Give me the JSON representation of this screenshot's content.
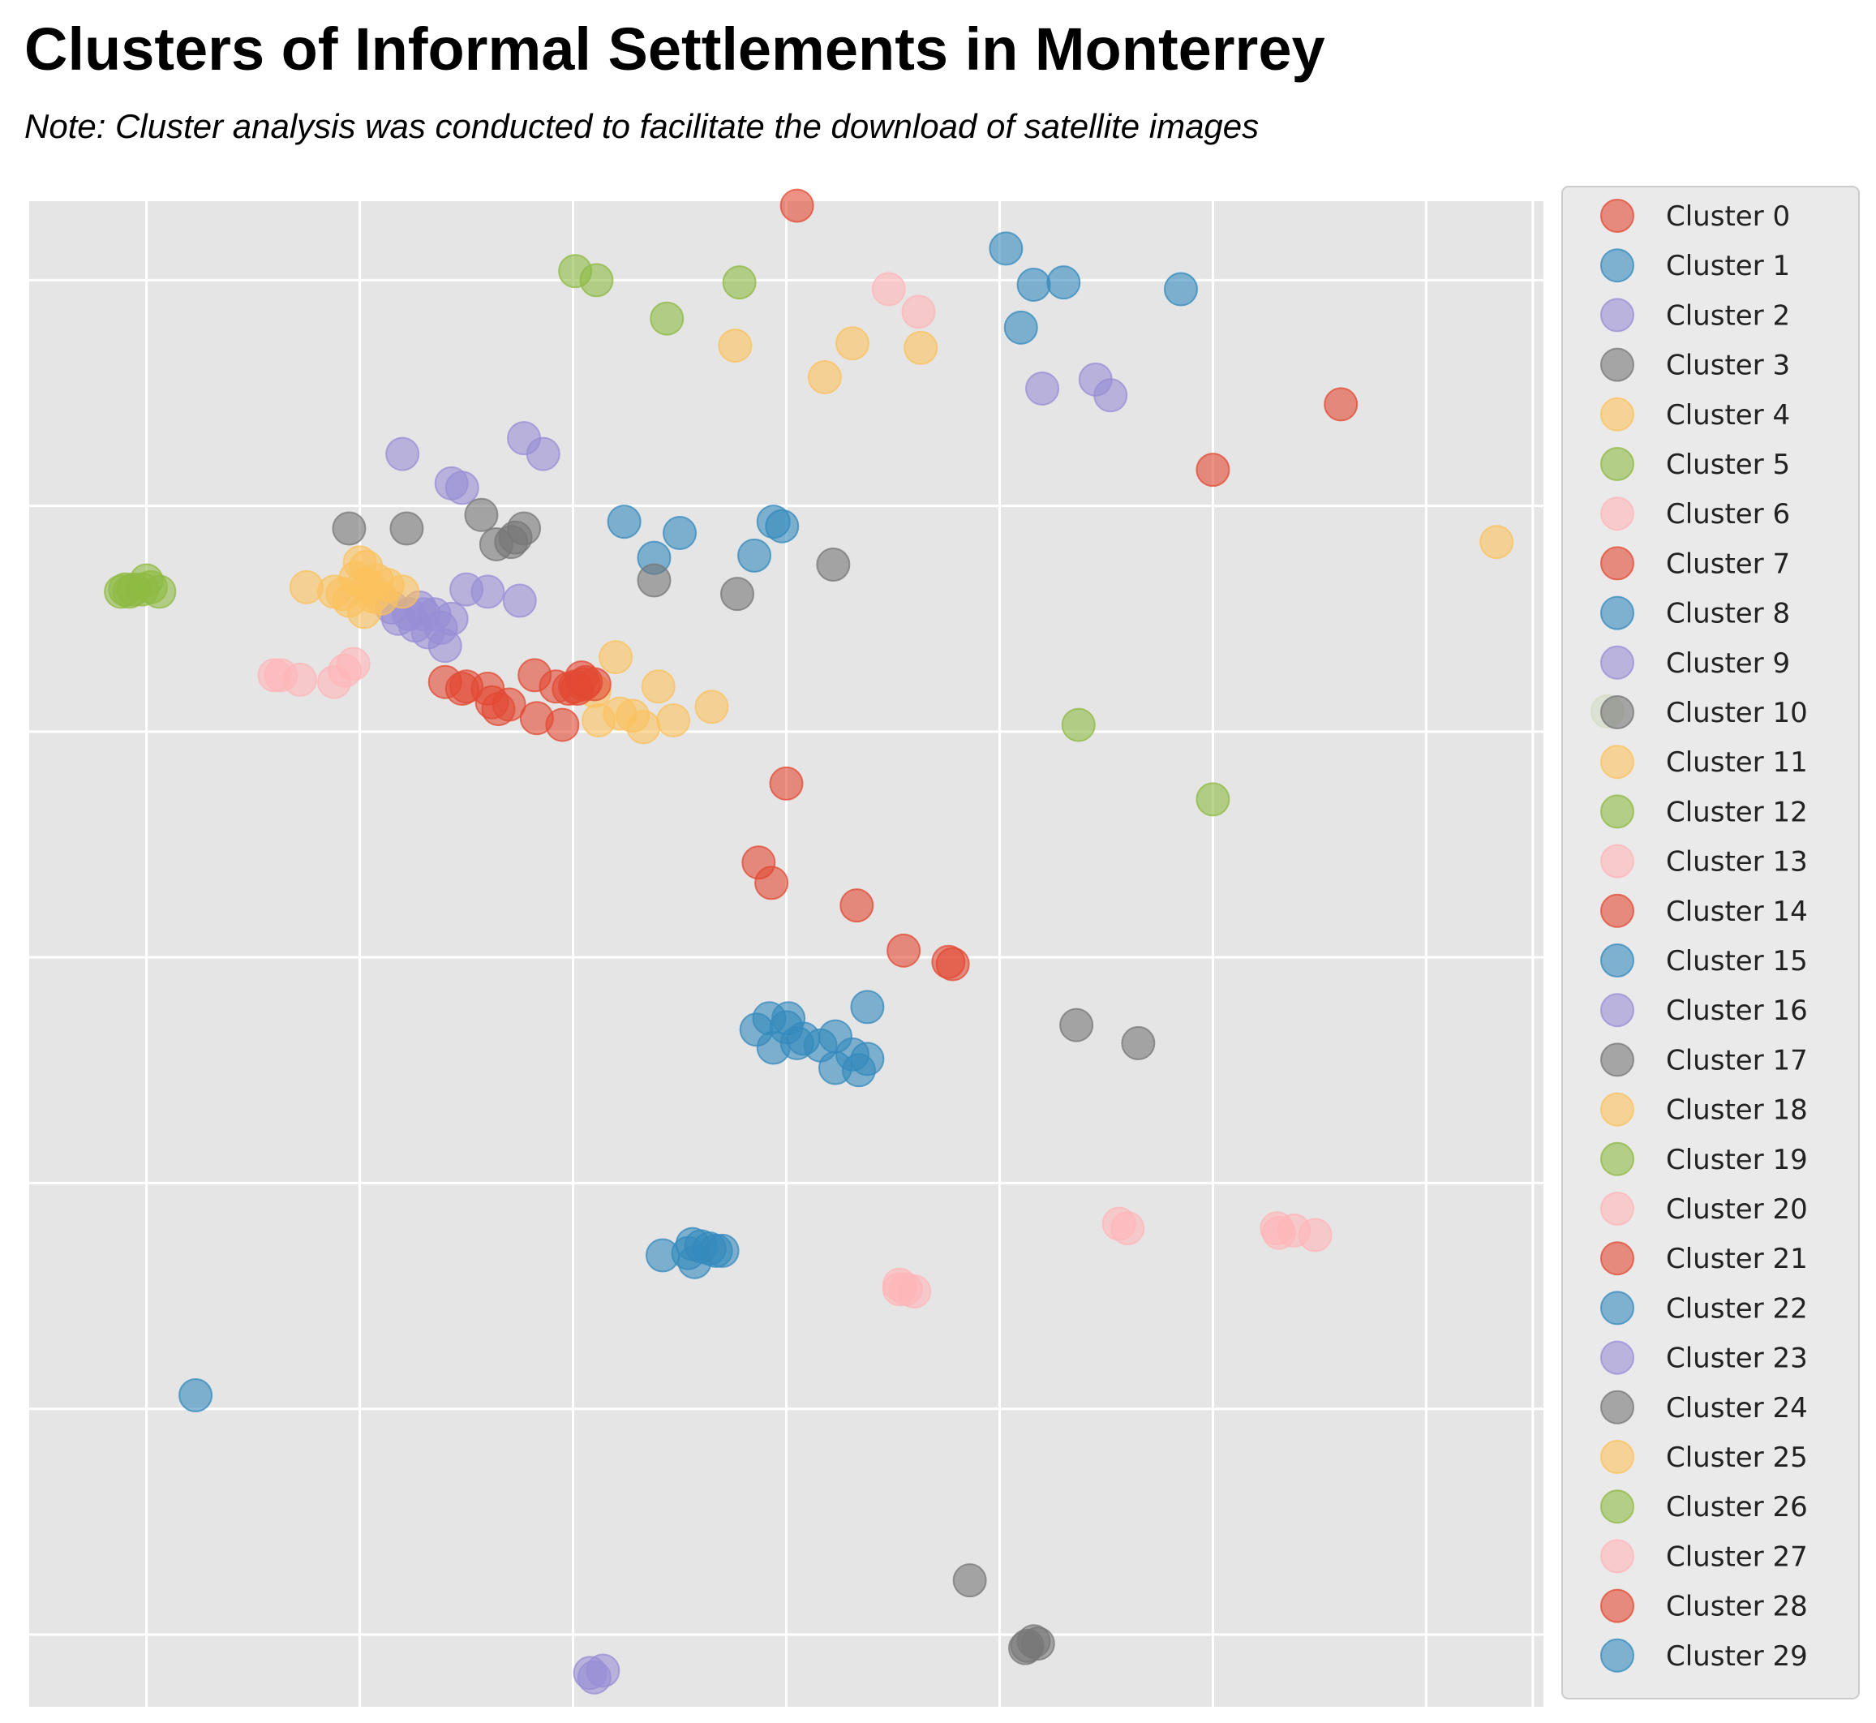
{
  "chart_data": {
    "type": "scatter",
    "title": "Clusters of Informal Settlements in Monterrey",
    "subtitle": "Note: Cluster analysis was conducted to facilitate the download of satellite images",
    "xlabel": "",
    "ylabel": "",
    "xlim": [
      -0.05,
      7.05
    ],
    "ylim": [
      0.68,
      7.35
    ],
    "grid": true,
    "legend_position": "right",
    "xticks": [
      0.5,
      1.5,
      2.5,
      3.5,
      4.5,
      5.5,
      6.5,
      7.0
    ],
    "yticks": [
      1.0,
      2.0,
      3.0,
      4.0,
      5.0,
      6.0,
      7.0
    ],
    "series": [
      {
        "name": "Cluster 0",
        "color": "#E24A33",
        "points": [
          [
            3.55,
            7.33
          ],
          [
            6.1,
            6.45
          ],
          [
            5.5,
            6.16
          ]
        ]
      },
      {
        "name": "Cluster 1",
        "color": "#348ABD",
        "points": [
          [
            4.53,
            7.14
          ],
          [
            4.66,
            6.98
          ],
          [
            4.8,
            6.99
          ],
          [
            5.35,
            6.96
          ],
          [
            4.6,
            6.79
          ]
        ]
      },
      {
        "name": "Cluster 2",
        "color": "#988ED5",
        "points": [
          [
            4.7,
            6.52
          ],
          [
            4.95,
            6.56
          ],
          [
            5.02,
            6.49
          ]
        ]
      },
      {
        "name": "Cluster 3",
        "color": "#777777",
        "points": [
          [
            3.72,
            5.74
          ],
          [
            4.86,
            3.7
          ],
          [
            5.15,
            3.62
          ]
        ]
      },
      {
        "name": "Cluster 4",
        "color": "#FBC15E",
        "points": [
          [
            3.26,
            6.71
          ],
          [
            3.68,
            6.57
          ],
          [
            3.81,
            6.72
          ],
          [
            4.13,
            6.7
          ],
          [
            6.83,
            5.84
          ]
        ]
      },
      {
        "name": "Cluster 5",
        "color": "#8EBA42",
        "points": [
          [
            2.51,
            7.04
          ],
          [
            2.61,
            7.0
          ],
          [
            2.94,
            6.83
          ],
          [
            3.28,
            6.99
          ],
          [
            4.87,
            5.03
          ],
          [
            5.5,
            4.7
          ],
          [
            7.35,
            5.09
          ]
        ]
      },
      {
        "name": "Cluster 6",
        "color": "#FFB5B8",
        "points": [
          [
            3.98,
            6.96
          ],
          [
            4.12,
            6.86
          ]
        ]
      },
      {
        "name": "Cluster 7",
        "color": "#E24A33",
        "points": [
          [
            3.5,
            4.77
          ],
          [
            3.37,
            4.42
          ],
          [
            3.43,
            4.33
          ],
          [
            3.83,
            4.23
          ],
          [
            4.05,
            4.03
          ],
          [
            4.26,
            3.98
          ],
          [
            4.28,
            3.97
          ]
        ]
      },
      {
        "name": "Cluster 8",
        "color": "#348ABD",
        "points": [
          [
            3.36,
            3.68
          ],
          [
            3.44,
            3.6
          ],
          [
            3.51,
            3.73
          ],
          [
            3.58,
            3.64
          ],
          [
            3.66,
            3.61
          ],
          [
            3.73,
            3.65
          ],
          [
            3.81,
            3.57
          ],
          [
            3.88,
            3.78
          ],
          [
            3.5,
            3.69
          ],
          [
            3.73,
            3.51
          ],
          [
            3.84,
            3.5
          ],
          [
            3.88,
            3.55
          ],
          [
            3.42,
            3.73
          ],
          [
            3.55,
            3.62
          ]
        ]
      },
      {
        "name": "Cluster 9",
        "color": "#988ED5",
        "points": [
          [
            1.7,
            6.23
          ],
          [
            2.27,
            6.3
          ],
          [
            2.36,
            6.23
          ],
          [
            1.93,
            6.1
          ],
          [
            1.98,
            6.08
          ],
          [
            2.0,
            5.63
          ],
          [
            2.1,
            5.62
          ],
          [
            2.25,
            5.58
          ]
        ]
      },
      {
        "name": "Cluster 10",
        "color": "#777777",
        "points": [
          [
            1.45,
            5.9
          ],
          [
            1.72,
            5.9
          ],
          [
            2.07,
            5.96
          ],
          [
            2.27,
            5.9
          ],
          [
            2.14,
            5.83
          ],
          [
            2.21,
            5.84
          ],
          [
            2.23,
            5.86
          ]
        ]
      },
      {
        "name": "Cluster 11",
        "color": "#FBC15E",
        "points": [
          [
            2.7,
            5.33
          ],
          [
            2.6,
            5.18
          ],
          [
            2.9,
            5.2
          ],
          [
            2.72,
            5.08
          ],
          [
            2.83,
            5.02
          ],
          [
            2.97,
            5.05
          ],
          [
            3.15,
            5.11
          ],
          [
            2.62,
            5.05
          ],
          [
            2.78,
            5.07
          ]
        ]
      },
      {
        "name": "Cluster 12",
        "color": "#8EBA42",
        "points": [
          [
            0.4,
            5.63
          ],
          [
            0.5,
            5.67
          ],
          [
            0.56,
            5.62
          ],
          [
            0.52,
            5.64
          ],
          [
            0.38,
            5.62
          ]
        ]
      },
      {
        "name": "Cluster 13",
        "color": "#FFB5B8",
        "points": [
          [
            1.1,
            5.25
          ],
          [
            1.13,
            5.25
          ],
          [
            1.22,
            5.23
          ],
          [
            1.38,
            5.22
          ],
          [
            1.43,
            5.27
          ],
          [
            1.47,
            5.3
          ]
        ]
      },
      {
        "name": "Cluster 14",
        "color": "#E24A33",
        "points": [
          [
            1.9,
            5.22
          ],
          [
            2.0,
            5.2
          ],
          [
            2.1,
            5.19
          ],
          [
            2.32,
            5.25
          ],
          [
            2.42,
            5.2
          ],
          [
            2.54,
            5.24
          ],
          [
            2.6,
            5.21
          ],
          [
            2.45,
            5.03
          ],
          [
            2.33,
            5.06
          ],
          [
            1.98,
            5.19
          ],
          [
            2.52,
            5.19
          ],
          [
            2.55,
            5.21
          ]
        ]
      },
      {
        "name": "Cluster 15",
        "color": "#348ABD",
        "points": [
          [
            2.74,
            5.93
          ],
          [
            2.88,
            5.77
          ],
          [
            3.0,
            5.88
          ],
          [
            3.35,
            5.78
          ],
          [
            3.44,
            5.93
          ],
          [
            3.48,
            5.91
          ]
        ]
      },
      {
        "name": "Cluster 16",
        "color": "#988ED5",
        "points": [
          [
            1.65,
            5.55
          ],
          [
            1.73,
            5.52
          ],
          [
            1.78,
            5.55
          ],
          [
            1.85,
            5.52
          ],
          [
            1.93,
            5.5
          ],
          [
            1.88,
            5.46
          ],
          [
            1.76,
            5.47
          ],
          [
            1.82,
            5.44
          ],
          [
            1.68,
            5.5
          ],
          [
            1.9,
            5.38
          ],
          [
            1.8,
            5.52
          ]
        ]
      },
      {
        "name": "Cluster 17",
        "color": "#777777",
        "points": [
          [
            2.88,
            5.67
          ],
          [
            3.27,
            5.61
          ]
        ]
      },
      {
        "name": "Cluster 18",
        "color": "#FBC15E",
        "points": [
          [
            1.5,
            5.75
          ],
          [
            1.55,
            5.64
          ],
          [
            1.7,
            5.62
          ],
          [
            1.6,
            5.59
          ],
          [
            1.52,
            5.53
          ],
          [
            1.42,
            5.61
          ],
          [
            1.25,
            5.64
          ],
          [
            1.45,
            5.58
          ],
          [
            1.63,
            5.65
          ],
          [
            1.38,
            5.62
          ]
        ]
      },
      {
        "name": "Cluster 19",
        "color": "#8EBA42",
        "points": [
          [
            0.42,
            5.62
          ],
          [
            0.48,
            5.63
          ]
        ]
      },
      {
        "name": "Cluster 20",
        "color": "#FFB5B8",
        "points": [
          [
            5.06,
            2.82
          ],
          [
            5.1,
            2.8
          ],
          [
            5.8,
            2.8
          ],
          [
            5.81,
            2.78
          ],
          [
            5.88,
            2.79
          ],
          [
            5.98,
            2.77
          ]
        ]
      },
      {
        "name": "Cluster 21",
        "color": "#E24A33",
        "points": [
          [
            2.56,
            5.22
          ],
          [
            2.51,
            5.2
          ],
          [
            2.48,
            5.19
          ]
        ]
      },
      {
        "name": "Cluster 22",
        "color": "#348ABD",
        "points": [
          [
            0.73,
            2.06
          ],
          [
            2.92,
            2.68
          ],
          [
            3.06,
            2.73
          ],
          [
            3.1,
            2.72
          ],
          [
            3.14,
            2.71
          ],
          [
            3.17,
            2.7
          ],
          [
            3.2,
            2.7
          ],
          [
            3.07,
            2.65
          ],
          [
            3.04,
            2.69
          ]
        ]
      },
      {
        "name": "Cluster 23",
        "color": "#988ED5",
        "points": [
          [
            2.58,
            0.83
          ],
          [
            2.64,
            0.84
          ],
          [
            2.6,
            0.81
          ]
        ]
      },
      {
        "name": "Cluster 24",
        "color": "#777777",
        "points": [
          [
            4.36,
            1.24
          ],
          [
            4.63,
            0.95
          ],
          [
            4.66,
            0.97
          ],
          [
            4.68,
            0.96
          ],
          [
            4.62,
            0.94
          ]
        ]
      },
      {
        "name": "Cluster 25",
        "color": "#FBC15E",
        "points": [
          [
            1.53,
            5.73
          ],
          [
            1.58,
            5.67
          ],
          [
            1.48,
            5.68
          ],
          [
            1.56,
            5.6
          ],
          [
            1.52,
            5.65
          ]
        ]
      },
      {
        "name": "Cluster 26",
        "color": "#8EBA42",
        "points": [
          [
            0.44,
            5.63
          ]
        ]
      },
      {
        "name": "Cluster 27",
        "color": "#FFB5B8",
        "points": [
          [
            4.03,
            2.55
          ],
          [
            4.06,
            2.53
          ],
          [
            4.1,
            2.52
          ],
          [
            4.03,
            2.53
          ]
        ]
      },
      {
        "name": "Cluster 28",
        "color": "#E24A33",
        "points": [
          [
            2.2,
            5.12
          ],
          [
            2.15,
            5.1
          ],
          [
            2.12,
            5.13
          ]
        ]
      },
      {
        "name": "Cluster 29",
        "color": "#348ABD",
        "points": []
      }
    ]
  }
}
